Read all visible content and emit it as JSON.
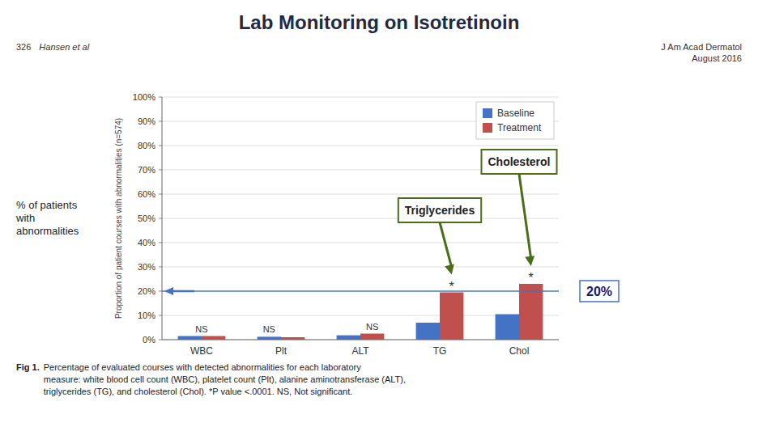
{
  "chart_data": {
    "type": "bar",
    "title": "Lab Monitoring on Isotretinoin",
    "header": {
      "left": "326",
      "left_italic": "Hansen et al",
      "right": "J Am Acad Dermatol\nAugust 2016"
    },
    "caption": {
      "label": "Fig 1.",
      "text": "Percentage of evaluated courses with detected abnormalities for each laboratory\nmeasure: white blood cell count (WBC), platelet count (Plt), alanine aminotransferase (ALT),\ntriglycerides (TG), and cholesterol (Chol). *P value <.0001. NS, Not significant."
    },
    "ylabel": "Proportion of patient courses with abnormalities (n=574)",
    "categories": [
      "WBC",
      "Plt",
      "ALT",
      "TG",
      "Chol"
    ],
    "series": [
      {
        "name": "Baseline",
        "color": "#4472c4",
        "values": [
          1.5,
          1.2,
          1.8,
          7.0,
          10.5
        ]
      },
      {
        "name": "Treatment",
        "color": "#c0504d",
        "values": [
          1.5,
          1.0,
          2.5,
          19.5,
          23.0
        ]
      }
    ],
    "ylim": [
      0,
      100
    ],
    "yticks": [
      {
        "value": 0,
        "label": "0%"
      },
      {
        "value": 10,
        "label": "10%"
      },
      {
        "value": 20,
        "label": "20%"
      },
      {
        "value": 30,
        "label": "30%"
      },
      {
        "value": 40,
        "label": "40%"
      },
      {
        "value": 50,
        "label": "50%"
      },
      {
        "value": 60,
        "label": "60%"
      },
      {
        "value": 70,
        "label": "70%"
      },
      {
        "value": 80,
        "label": "80%"
      },
      {
        "value": 90,
        "label": "90%"
      },
      {
        "value": 100,
        "label": "100%"
      }
    ],
    "grid": true,
    "legend": "upper right",
    "significance": [
      "NS",
      "NS",
      "NS",
      "*",
      "*"
    ],
    "reference_line": {
      "value": 20,
      "label": "20%",
      "color": "#4472c4"
    },
    "annotations": [
      {
        "text": "% of patients\nwith\nabnormalities"
      },
      {
        "text": "Triglycerides",
        "target": "TG",
        "color": "#4a6e1a"
      },
      {
        "text": "Cholesterol",
        "target": "Chol",
        "color": "#4a6e1a"
      }
    ]
  }
}
